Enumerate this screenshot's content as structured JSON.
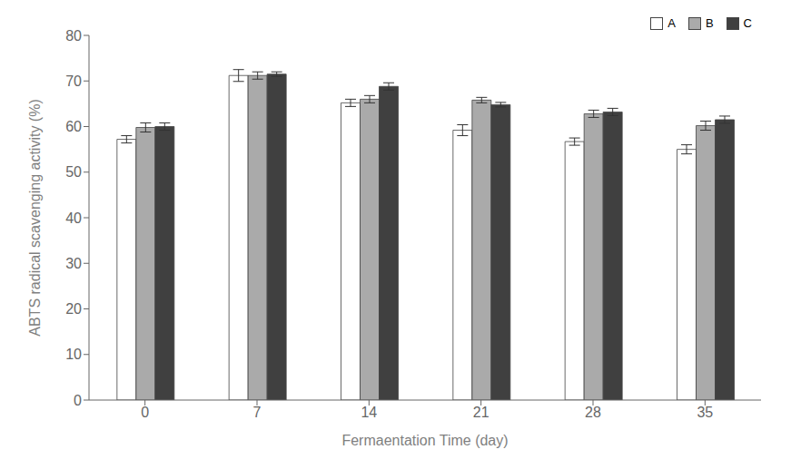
{
  "chart_data": {
    "type": "bar",
    "categories": [
      "0",
      "7",
      "14",
      "21",
      "28",
      "35"
    ],
    "series": [
      {
        "name": "A",
        "color": "#ffffff",
        "values": [
          57.2,
          71.2,
          65.2,
          59.2,
          56.7,
          55.0
        ],
        "errors": [
          0.8,
          1.3,
          0.8,
          1.2,
          0.8,
          1.0
        ]
      },
      {
        "name": "B",
        "color": "#aaaaaa",
        "values": [
          59.8,
          71.2,
          66.0,
          65.8,
          62.8,
          60.2
        ],
        "errors": [
          1.0,
          0.8,
          0.8,
          0.6,
          0.8,
          1.0
        ]
      },
      {
        "name": "C",
        "color": "#404040",
        "values": [
          60.0,
          71.5,
          68.8,
          64.8,
          63.2,
          61.5
        ],
        "errors": [
          0.8,
          0.5,
          0.8,
          0.5,
          0.8,
          0.8
        ]
      }
    ],
    "xlabel": "Fermaentation Time (day)",
    "ylabel": "ABTS radical scavenging activity (%)",
    "ylim": [
      0,
      80
    ],
    "yticks": [
      0,
      10,
      20,
      30,
      40,
      50,
      60,
      70,
      80
    ],
    "legend": "upper right",
    "grid": false
  }
}
